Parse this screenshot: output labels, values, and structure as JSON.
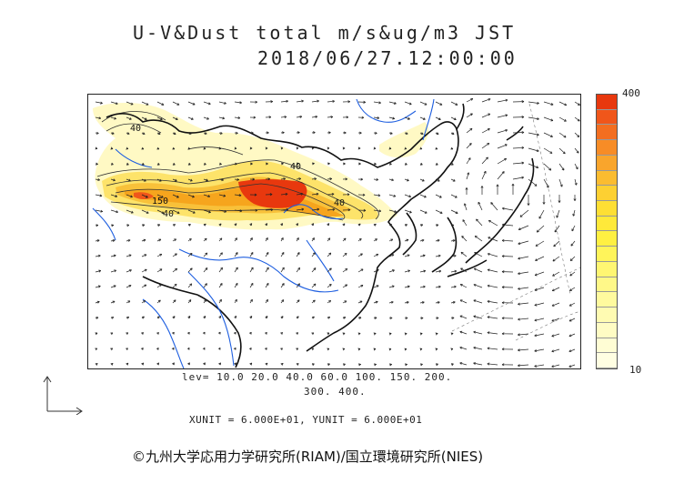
{
  "title": {
    "line1": "U-V&Dust total m/s&ug/m3 JST",
    "line2": "2018/06/27.12:00:00"
  },
  "colorbar": {
    "max_label": "400",
    "min_label": "10",
    "colors": [
      "#e8380e",
      "#f0561a",
      "#f36e20",
      "#f78c26",
      "#f9a52c",
      "#fbbc30",
      "#fdd032",
      "#fedf34",
      "#ffe93a",
      "#fff042",
      "#fff45a",
      "#fff672",
      "#fff888",
      "#fffa9e",
      "#fffbb2",
      "#fffcc4",
      "#fffdd4",
      "#fffee2"
    ]
  },
  "levels": {
    "line1": "lev=  10.0  20.0  40.0  60.0 100. 150. 200.",
    "line2": "300. 400."
  },
  "units_line": "XUNIT = 6.000E+01,  YUNIT = 6.000E+01",
  "credit": "©九州大学応用力学研究所(RIAM)/国立環境研究所(NIES)",
  "contour_labels": [
    "40",
    "150",
    "40",
    "40",
    "40"
  ],
  "colors": {
    "coast": "#111111",
    "river": "#1f5fe0",
    "vector": "#222222",
    "dust_low": "#fff9c4",
    "dust_mid": "#fde36a",
    "dust_high": "#f6a51d",
    "dust_peak": "#e8380e"
  }
}
